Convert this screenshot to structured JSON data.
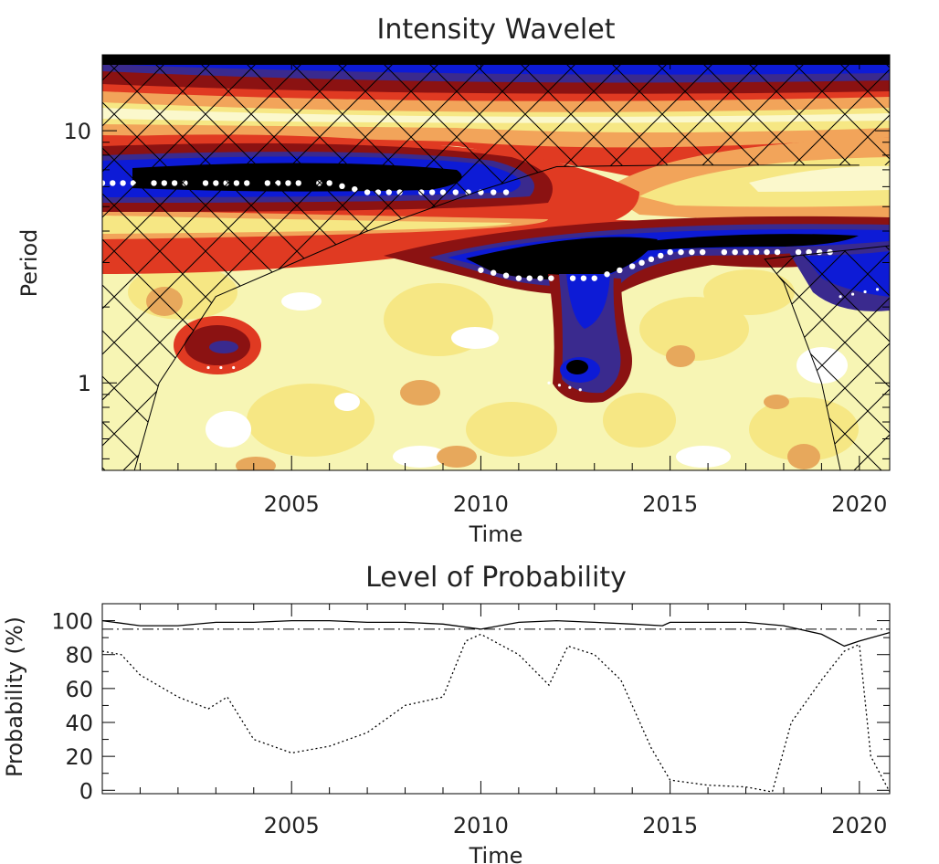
{
  "chart_data": [
    {
      "type": "heatmap",
      "title": "Intensity Wavelet",
      "xlabel": "Time",
      "ylabel": "Period",
      "xlim": [
        2000.0,
        2020.8
      ],
      "ylim": [
        0.45,
        20
      ],
      "yscale": "log",
      "xticks": [
        2005,
        2010,
        2015,
        2020
      ],
      "yticks": [
        1,
        10
      ],
      "colors": {
        "background": "#f7f5b4",
        "max_power": "#000000",
        "high": "#0d1bd6",
        "high_mid": "#3a2a8e",
        "mid": "#8b1212",
        "mid_low": "#e03a22",
        "low_mid": "#f2a45a",
        "low": "#f6e784",
        "min_power": "#ffffff"
      },
      "ridges": [
        {
          "name": "",
          "points": [
            [
              2000.0,
              6.2
            ],
            [
              2003.0,
              6.2
            ],
            [
              2006.0,
              6.2
            ],
            [
              2007.0,
              5.7
            ],
            [
              2009.0,
              5.7
            ],
            [
              2010.0,
              5.7
            ],
            [
              2011.0,
              5.7
            ]
          ]
        },
        {
          "name": "",
          "points": [
            [
              2010.0,
              2.8
            ],
            [
              2011.0,
              2.6
            ],
            [
              2013.0,
              2.6
            ],
            [
              2014.0,
              2.9
            ],
            [
              2015.0,
              3.3
            ],
            [
              2017.0,
              3.3
            ],
            [
              2019.5,
              3.3
            ]
          ]
        },
        {
          "name": "",
          "points": [
            [
              2019.5,
              2.2
            ],
            [
              2020.8,
              2.4
            ]
          ]
        },
        {
          "name": "",
          "points": [
            [
              2002.8,
              1.15
            ],
            [
              2003.8,
              1.15
            ]
          ]
        },
        {
          "name": "",
          "points": [
            [
              2011.8,
              1.0
            ],
            [
              2012.9,
              0.92
            ]
          ]
        }
      ],
      "cone_of_influence": {
        "left": [
          [
            2000.85,
            0.45
          ],
          [
            2001.5,
            1.0
          ],
          [
            2003.0,
            2.2
          ],
          [
            2007.0,
            4.0
          ],
          [
            2010.0,
            5.8
          ],
          [
            2012.0,
            7.2
          ],
          [
            2015.0,
            7.3
          ],
          [
            2020.0,
            7.3
          ]
        ],
        "right": [
          [
            2019.5,
            0.45
          ],
          [
            2019.0,
            1.0
          ],
          [
            2018.0,
            2.5
          ],
          [
            2017.5,
            3.1
          ],
          [
            2020.8,
            3.5
          ]
        ]
      }
    },
    {
      "type": "line",
      "title": "Level of Probability",
      "xlabel": "Time",
      "ylabel": "Probability (%)",
      "xlim": [
        2000.0,
        2020.8
      ],
      "ylim": [
        -2,
        110
      ],
      "xticks": [
        2005,
        2010,
        2015,
        2020
      ],
      "yticks": [
        0,
        20,
        40,
        60,
        80,
        100
      ],
      "threshold": 95,
      "series": [
        {
          "name": "",
          "style": "solid",
          "x": [
            2000.0,
            2001.0,
            2002.0,
            2003.0,
            2004.0,
            2005.0,
            2006.0,
            2007.0,
            2008.0,
            2009.0,
            2010.0,
            2011.0,
            2012.0,
            2013.0,
            2014.0,
            2014.8,
            2015.0,
            2016.0,
            2017.0,
            2018.0,
            2019.0,
            2019.6,
            2020.0,
            2020.8
          ],
          "y": [
            100,
            97,
            97,
            99,
            99,
            100,
            100,
            99,
            99,
            98,
            95,
            99,
            100,
            99,
            98,
            97,
            99,
            99,
            99,
            97,
            92,
            85,
            88,
            93
          ]
        },
        {
          "name": "",
          "style": "dotted",
          "x": [
            2000.0,
            2000.5,
            2001.0,
            2002.0,
            2002.8,
            2003.3,
            2004.0,
            2005.0,
            2006.0,
            2007.0,
            2008.0,
            2009.0,
            2009.6,
            2010.0,
            2011.0,
            2011.8,
            2012.3,
            2013.0,
            2013.7,
            2014.5,
            2015.0,
            2016.0,
            2017.0,
            2017.7,
            2018.2,
            2019.0,
            2019.6,
            2020.0,
            2020.3,
            2020.8
          ],
          "y": [
            82,
            80,
            68,
            55,
            48,
            55,
            30,
            22,
            26,
            34,
            50,
            55,
            88,
            92,
            80,
            62,
            85,
            80,
            65,
            25,
            6,
            3,
            2,
            -1,
            40,
            65,
            82,
            86,
            20,
            -1
          ]
        }
      ]
    }
  ]
}
